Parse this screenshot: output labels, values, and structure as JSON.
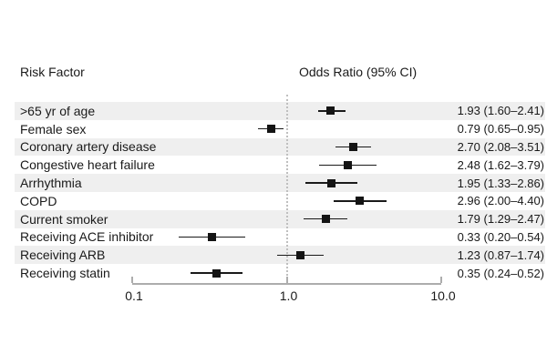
{
  "chart_data": {
    "type": "forest",
    "title": "",
    "left_header": "Risk Factor",
    "right_header": "Odds Ratio (95% CI)",
    "x_axis": {
      "scale": "log10",
      "range": [
        0.1,
        10.0
      ],
      "tick_values": [
        0.1,
        1.0,
        10.0
      ],
      "tick_labels": [
        "0.1",
        "1.0",
        "10.0"
      ],
      "reference_line": 1.0,
      "grid": false
    },
    "rows": [
      {
        "label": ">65 yr of age",
        "or": 1.93,
        "ci_low": 1.6,
        "ci_high": 2.41,
        "value_text": "1.93 (1.60–2.41)",
        "shaded": true
      },
      {
        "label": "Female sex",
        "or": 0.79,
        "ci_low": 0.65,
        "ci_high": 0.95,
        "value_text": "0.79 (0.65–0.95)",
        "shaded": false
      },
      {
        "label": "Coronary artery disease",
        "or": 2.7,
        "ci_low": 2.08,
        "ci_high": 3.51,
        "value_text": "2.70 (2.08–3.51)",
        "shaded": true
      },
      {
        "label": "Congestive heart failure",
        "or": 2.48,
        "ci_low": 1.62,
        "ci_high": 3.79,
        "value_text": "2.48 (1.62–3.79)",
        "shaded": false
      },
      {
        "label": "Arrhythmia",
        "or": 1.95,
        "ci_low": 1.33,
        "ci_high": 2.86,
        "value_text": "1.95 (1.33–2.86)",
        "shaded": true
      },
      {
        "label": "COPD",
        "or": 2.96,
        "ci_low": 2.0,
        "ci_high": 4.4,
        "value_text": "2.96 (2.00–4.40)",
        "shaded": false
      },
      {
        "label": "Current smoker",
        "or": 1.79,
        "ci_low": 1.29,
        "ci_high": 2.47,
        "value_text": "1.79 (1.29–2.47)",
        "shaded": true
      },
      {
        "label": "Receiving ACE inhibitor",
        "or": 0.33,
        "ci_low": 0.2,
        "ci_high": 0.54,
        "value_text": "0.33 (0.20–0.54)",
        "shaded": false
      },
      {
        "label": "Receiving ARB",
        "or": 1.23,
        "ci_low": 0.87,
        "ci_high": 1.74,
        "value_text": "1.23 (0.87–1.74)",
        "shaded": true
      },
      {
        "label": "Receiving statin",
        "or": 0.35,
        "ci_low": 0.24,
        "ci_high": 0.52,
        "value_text": "0.35 (0.24–0.52)",
        "shaded": false
      }
    ],
    "colors": {
      "band": "#efefef",
      "marker": "#141414",
      "text": "#1a1a1a",
      "axis": "#adadad",
      "reference_line": "#bfbfbf",
      "background": "#ffffff"
    }
  }
}
